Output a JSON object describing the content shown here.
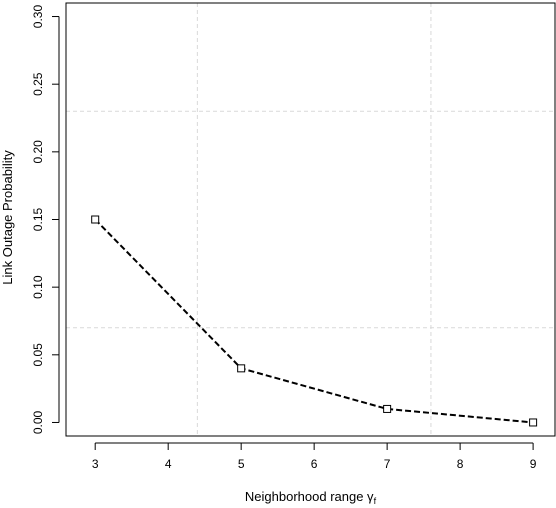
{
  "chart_data": {
    "type": "line",
    "title": "",
    "xlabel": "Neighborhood range γ",
    "xlabel_subscript": "f",
    "ylabel": "Link Outage Probability",
    "x": [
      3,
      5,
      7,
      9
    ],
    "series": [
      {
        "values": [
          0.15,
          0.04,
          0.01,
          0.0
        ],
        "line_style": "dashed",
        "marker": "square",
        "color": "#000000"
      }
    ],
    "xlim": [
      2.6,
      9.3
    ],
    "ylim": [
      -0.01,
      0.31
    ],
    "xticks": [
      3,
      4,
      5,
      6,
      7,
      8,
      9
    ],
    "xtick_labels": [
      "3",
      "4",
      "5",
      "6",
      "7",
      "8",
      "9"
    ],
    "yticks": [
      0.0,
      0.05,
      0.1,
      0.15,
      0.2,
      0.25,
      0.3
    ],
    "ytick_labels": [
      "0.00",
      "0.05",
      "0.10",
      "0.15",
      "0.20",
      "0.25",
      "0.30"
    ],
    "grid": true,
    "grid_color": "#d9d9d9"
  }
}
